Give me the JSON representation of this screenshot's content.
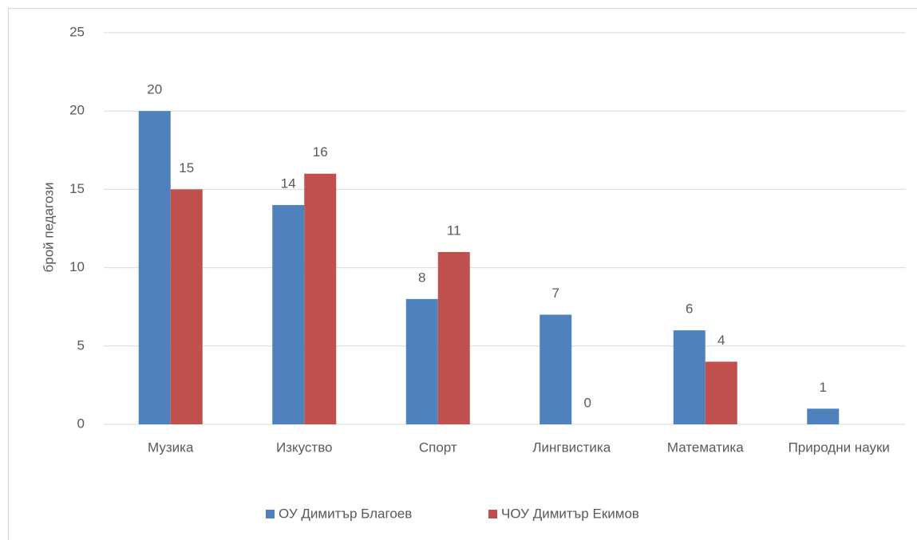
{
  "chart_data": {
    "type": "bar",
    "y_label": "брой педагози",
    "categories": [
      "Музика",
      "Изкуство",
      "Спорт",
      "Лингвистика",
      "Математика",
      "Природни науки"
    ],
    "series": [
      {
        "name": "ОУ Димитър Благоев",
        "color": "#4f81bd",
        "values": [
          20,
          14,
          8,
          7,
          6,
          1
        ]
      },
      {
        "name": "ЧОУ Димитър Екимов",
        "color": "#c0504d",
        "values": [
          15,
          16,
          11,
          0,
          4,
          null
        ]
      }
    ],
    "ylim": [
      0,
      25
    ],
    "yticks": [
      0,
      5,
      10,
      15,
      20,
      25
    ],
    "grid": true,
    "legend": "bottom"
  }
}
